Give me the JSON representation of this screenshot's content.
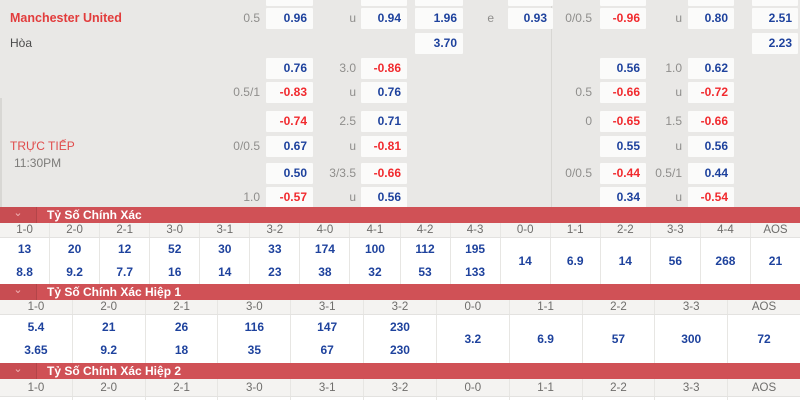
{
  "theme": {
    "bg": "#e9e8e6",
    "cell_bg": "#fbfbfa",
    "blue": "#1e429d",
    "red": "#f12a2e",
    "label_grey": "#8f8e8c",
    "team_red": "#e23c3c",
    "live_red": "#e04b4b",
    "time_grey": "#7c7b79",
    "header_red": "#d05156",
    "header_red_dark": "#c84d52",
    "chevron_pink": "#efb3b5",
    "table_head_bg": "#f4f3f1",
    "table_head_text": "#6e6d6b",
    "col_border": "#e7e6e3",
    "divider": "#d8d7d4"
  },
  "match": {
    "home_team": "Manchester United",
    "draw_label": "Hòa",
    "live_label": "TRỰC TIẾP",
    "kickoff_time": "11:30PM"
  },
  "odds_grid": {
    "rows": [
      {
        "r": "r0",
        "cells": [
          {
            "s": "b1",
            "t": ""
          },
          {
            "s": "b2",
            "t": ""
          },
          {
            "s": "b3",
            "t": ""
          },
          {
            "s": "b4",
            "t": ""
          },
          {
            "s": "rb1",
            "t": ""
          },
          {
            "s": "rb2",
            "t": ""
          },
          {
            "s": "rb3",
            "t": ""
          }
        ]
      },
      {
        "r": "r1",
        "cells": [
          {
            "s": "l1",
            "t": "0.5"
          },
          {
            "s": "b1",
            "t": "0.96"
          },
          {
            "s": "l2",
            "t": "u"
          },
          {
            "s": "b2",
            "t": "0.94"
          },
          {
            "s": "b3",
            "t": "1.96"
          },
          {
            "s": "l3",
            "t": "e"
          },
          {
            "s": "b4",
            "t": "0.93"
          },
          {
            "s": "rl1",
            "t": "0/0.5"
          },
          {
            "s": "rb1",
            "t": "-0.96"
          },
          {
            "s": "rl2",
            "t": "u"
          },
          {
            "s": "rb2",
            "t": "0.80"
          },
          {
            "s": "rb3",
            "t": "2.51"
          }
        ]
      },
      {
        "r": "r2",
        "cells": [
          {
            "s": "b3",
            "t": "3.70"
          },
          {
            "s": "rb3",
            "t": "2.23"
          }
        ]
      },
      {
        "r": "r3",
        "cells": [
          {
            "s": "b1",
            "t": "0.76"
          },
          {
            "s": "l2",
            "t": "3.0"
          },
          {
            "s": "b2",
            "t": "-0.86"
          },
          {
            "s": "rb1",
            "t": "0.56"
          },
          {
            "s": "rl2",
            "t": "1.0"
          },
          {
            "s": "rb2",
            "t": "0.62"
          }
        ]
      },
      {
        "r": "r4",
        "cells": [
          {
            "s": "l1",
            "t": "0.5/1"
          },
          {
            "s": "b1",
            "t": "-0.83"
          },
          {
            "s": "l2",
            "t": "u"
          },
          {
            "s": "b2",
            "t": "0.76"
          },
          {
            "s": "rl1",
            "t": "0.5"
          },
          {
            "s": "rb1",
            "t": "-0.66"
          },
          {
            "s": "rl2",
            "t": "u"
          },
          {
            "s": "rb2",
            "t": "-0.72"
          }
        ]
      },
      {
        "r": "r5",
        "cells": [
          {
            "s": "b1",
            "t": "-0.74"
          },
          {
            "s": "l2",
            "t": "2.5"
          },
          {
            "s": "b2",
            "t": "0.71"
          },
          {
            "s": "rl1",
            "t": "0"
          },
          {
            "s": "rb1",
            "t": "-0.65"
          },
          {
            "s": "rl2",
            "t": "1.5"
          },
          {
            "s": "rb2",
            "t": "-0.66"
          }
        ]
      },
      {
        "r": "r6",
        "cells": [
          {
            "s": "l1",
            "t": "0/0.5"
          },
          {
            "s": "b1",
            "t": "0.67"
          },
          {
            "s": "l2",
            "t": "u"
          },
          {
            "s": "b2",
            "t": "-0.81"
          },
          {
            "s": "rb1",
            "t": "0.55"
          },
          {
            "s": "rl2",
            "t": "u"
          },
          {
            "s": "rb2",
            "t": "0.56"
          }
        ]
      },
      {
        "r": "r7",
        "cells": [
          {
            "s": "b1",
            "t": "0.50"
          },
          {
            "s": "l2",
            "t": "3/3.5"
          },
          {
            "s": "b2",
            "t": "-0.66"
          },
          {
            "s": "rl1",
            "t": "0/0.5"
          },
          {
            "s": "rb1",
            "t": "-0.44"
          },
          {
            "s": "rl2",
            "t": "0.5/1"
          },
          {
            "s": "rb2",
            "t": "0.44"
          }
        ]
      },
      {
        "r": "r8",
        "cells": [
          {
            "s": "l1",
            "t": "1.0"
          },
          {
            "s": "b1",
            "t": "-0.57"
          },
          {
            "s": "l2",
            "t": "u"
          },
          {
            "s": "b2",
            "t": "0.56"
          },
          {
            "s": "rb1",
            "t": "0.34"
          },
          {
            "s": "rl2",
            "t": "u"
          },
          {
            "s": "rb2",
            "t": "-0.54"
          }
        ]
      }
    ]
  },
  "score_sections": [
    {
      "title": "Tỷ Số Chính Xác",
      "columns": [
        {
          "score": "1-0",
          "odds": [
            "13",
            "8.8"
          ]
        },
        {
          "score": "2-0",
          "odds": [
            "20",
            "9.2"
          ]
        },
        {
          "score": "2-1",
          "odds": [
            "12",
            "7.7"
          ]
        },
        {
          "score": "3-0",
          "odds": [
            "52",
            "16"
          ]
        },
        {
          "score": "3-1",
          "odds": [
            "30",
            "14"
          ]
        },
        {
          "score": "3-2",
          "odds": [
            "33",
            "23"
          ]
        },
        {
          "score": "4-0",
          "odds": [
            "174",
            "38"
          ]
        },
        {
          "score": "4-1",
          "odds": [
            "100",
            "32"
          ]
        },
        {
          "score": "4-2",
          "odds": [
            "112",
            "53"
          ]
        },
        {
          "score": "4-3",
          "odds": [
            "195",
            "133"
          ]
        },
        {
          "score": "0-0",
          "odds": [
            "14"
          ]
        },
        {
          "score": "1-1",
          "odds": [
            "6.9"
          ]
        },
        {
          "score": "2-2",
          "odds": [
            "14"
          ]
        },
        {
          "score": "3-3",
          "odds": [
            "56"
          ]
        },
        {
          "score": "4-4",
          "odds": [
            "268"
          ]
        },
        {
          "score": "AOS",
          "odds": [
            "21"
          ]
        }
      ]
    },
    {
      "title": "Tỷ Số Chính Xác Hiệp 1",
      "columns": [
        {
          "score": "1-0",
          "odds": [
            "5.4",
            "3.65"
          ]
        },
        {
          "score": "2-0",
          "odds": [
            "21",
            "9.2"
          ]
        },
        {
          "score": "2-1",
          "odds": [
            "26",
            "18"
          ]
        },
        {
          "score": "3-0",
          "odds": [
            "116",
            "35"
          ]
        },
        {
          "score": "3-1",
          "odds": [
            "147",
            "67"
          ]
        },
        {
          "score": "3-2",
          "odds": [
            "230",
            "230"
          ]
        },
        {
          "score": "0-0",
          "odds": [
            "3.2"
          ]
        },
        {
          "score": "1-1",
          "odds": [
            "6.9"
          ]
        },
        {
          "score": "2-2",
          "odds": [
            "57"
          ]
        },
        {
          "score": "3-3",
          "odds": [
            "300"
          ]
        },
        {
          "score": "AOS",
          "odds": [
            "72"
          ]
        }
      ]
    },
    {
      "title": "Tỷ Số Chính Xác Hiệp 2",
      "columns": [
        {
          "score": "1-0",
          "odds": []
        },
        {
          "score": "2-0",
          "odds": []
        },
        {
          "score": "2-1",
          "odds": []
        },
        {
          "score": "3-0",
          "odds": []
        },
        {
          "score": "3-1",
          "odds": []
        },
        {
          "score": "3-2",
          "odds": []
        },
        {
          "score": "0-0",
          "odds": []
        },
        {
          "score": "1-1",
          "odds": []
        },
        {
          "score": "2-2",
          "odds": []
        },
        {
          "score": "3-3",
          "odds": []
        },
        {
          "score": "AOS",
          "odds": []
        }
      ]
    }
  ],
  "icons": {
    "chevron_down": "⌄"
  }
}
